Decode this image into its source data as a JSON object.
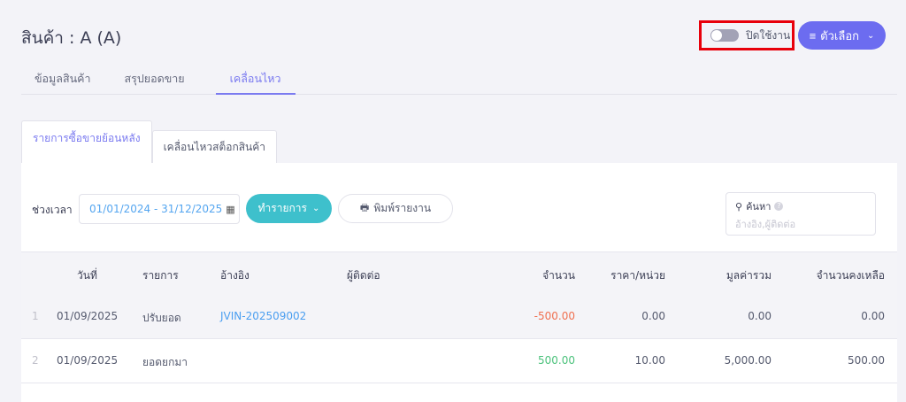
{
  "header": {
    "title": "สินค้า : A (A)",
    "toggle_label": "ปิดใช้งาน",
    "toggle_on": false,
    "options_label": "ตัวเลือก"
  },
  "tabs": [
    {
      "label": "ข้อมูลสินค้า"
    },
    {
      "label": "สรุปยอดขาย"
    },
    {
      "label": "เคลื่อนไหว",
      "active": true
    }
  ],
  "subtabs": [
    {
      "label": "รายการซื้อขายย้อนหลัง",
      "active": true
    },
    {
      "label": "เคลื่อนไหวสต็อกสินค้า"
    }
  ],
  "toolbar": {
    "period_label": "ช่วงเวลา",
    "date_range": "01/01/2024 - 31/12/2025",
    "action_label": "ทำรายการ",
    "print_label": "พิมพ์รายงาน",
    "search_label": "ค้นหา",
    "search_placeholder": "อ้างอิง,ผู้ติดต่อ"
  },
  "table": {
    "columns": [
      "วันที่",
      "รายการ",
      "อ้างอิง",
      "ผู้ติดต่อ",
      "จำนวน",
      "ราคา/หน่วย",
      "มูลค่ารวม",
      "จำนวนคงเหลือ"
    ],
    "rows": [
      {
        "index": "1",
        "date": "01/09/2025",
        "item": "ปรับยอด",
        "ref": "JVIN-202509002",
        "contact": "",
        "qty": "-500.00",
        "price": "0.00",
        "total": "0.00",
        "balance": "0.00"
      },
      {
        "index": "2",
        "date": "01/09/2025",
        "item": "ยอดยกมา",
        "ref": "",
        "contact": "",
        "qty": "500.00",
        "price": "10.00",
        "total": "5,000.00",
        "balance": "500.00"
      }
    ]
  },
  "colors": {
    "accent": "#6c6cf0",
    "action": "#3ec0cc",
    "negative": "#f07050",
    "positive": "#4cc27c",
    "link": "#4a9ef0",
    "highlight_border": "#e8000b"
  }
}
